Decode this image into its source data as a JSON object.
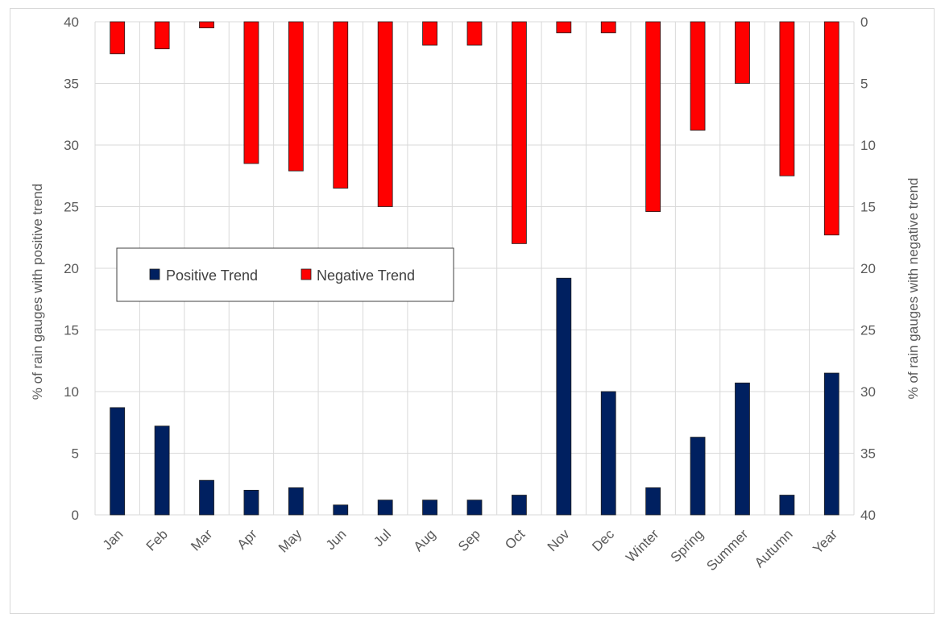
{
  "chart_data": {
    "type": "bar",
    "categories": [
      "Jan",
      "Feb",
      "Mar",
      "Apr",
      "May",
      "Jun",
      "Jul",
      "Aug",
      "Sep",
      "Oct",
      "Nov",
      "Dec",
      "Winter",
      "Spring",
      "Summer",
      "Autumn",
      "Year"
    ],
    "series": [
      {
        "name": "Positive Trend",
        "axis": "left",
        "color": "#002060",
        "values": [
          8.7,
          7.2,
          2.8,
          2.0,
          2.2,
          0.8,
          1.2,
          1.2,
          1.2,
          1.6,
          19.2,
          10.0,
          2.2,
          6.3,
          10.7,
          1.6,
          11.5
        ]
      },
      {
        "name": "Negative Trend",
        "axis": "right",
        "color": "#ff0000",
        "values": [
          2.6,
          2.2,
          0.5,
          11.5,
          12.1,
          13.5,
          15.0,
          1.9,
          1.9,
          18.0,
          0.9,
          0.9,
          15.4,
          8.8,
          5.0,
          12.5,
          17.3
        ]
      }
    ],
    "ylabel": "% of rain gauges with positive trend",
    "y2label": "% of rain gauges with negative trend",
    "ylim": [
      0,
      40
    ],
    "y2lim": [
      40,
      0
    ],
    "y2_inverted": true,
    "yticks": [
      "0",
      "5",
      "10",
      "15",
      "20",
      "25",
      "30",
      "35",
      "40"
    ],
    "y2ticks": [
      "40",
      "35",
      "30",
      "25",
      "20",
      "15",
      "10",
      "5",
      "0"
    ],
    "grid": true,
    "legend_position": "middle-left"
  }
}
